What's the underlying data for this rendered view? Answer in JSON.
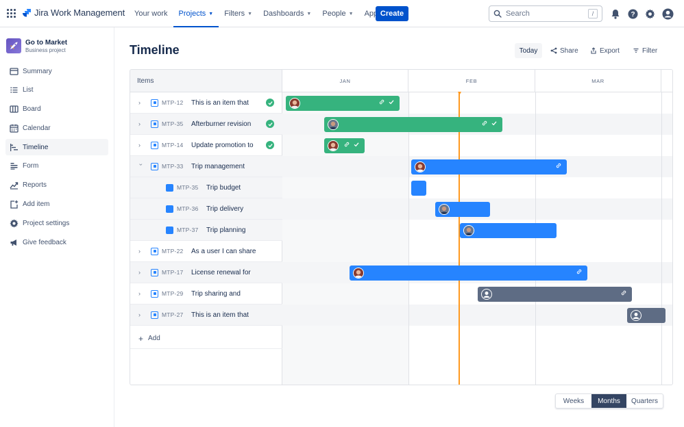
{
  "app": {
    "name": "Jira Work Management"
  },
  "nav": {
    "items": [
      {
        "label": "Your work",
        "dropdown": false
      },
      {
        "label": "Projects",
        "dropdown": true,
        "active": true
      },
      {
        "label": "Filters",
        "dropdown": true
      },
      {
        "label": "Dashboards",
        "dropdown": true
      },
      {
        "label": "People",
        "dropdown": true
      },
      {
        "label": "Apps",
        "dropdown": true
      }
    ],
    "create_label": "Create",
    "search_placeholder": "Search",
    "search_shortcut": "/"
  },
  "project": {
    "name": "Go to Market",
    "type": "Business project"
  },
  "sidebar": {
    "items": [
      {
        "label": "Summary",
        "icon": "summary-icon"
      },
      {
        "label": "List",
        "icon": "list-icon"
      },
      {
        "label": "Board",
        "icon": "board-icon"
      },
      {
        "label": "Calendar",
        "icon": "calendar-icon"
      },
      {
        "label": "Timeline",
        "icon": "timeline-icon",
        "active": true
      },
      {
        "label": "Form",
        "icon": "form-icon"
      },
      {
        "label": "Reports",
        "icon": "reports-icon"
      },
      {
        "label": "Add item",
        "icon": "add-item-icon"
      },
      {
        "label": "Project settings",
        "icon": "gear-icon"
      },
      {
        "label": "Give feedback",
        "icon": "megaphone-icon"
      }
    ]
  },
  "page": {
    "title": "Timeline",
    "today_label": "Today",
    "share_label": "Share",
    "export_label": "Export",
    "filter_label": "Filter"
  },
  "timeline": {
    "items_header": "Items",
    "months": [
      "JAN",
      "FEB",
      "MAR"
    ],
    "add_label": "Add",
    "rows": [
      {
        "key": "MTP-12",
        "summary": "This is an item that",
        "level": 0,
        "expand": "collapsed",
        "done": true,
        "bar_color": "green",
        "avatar": "woman"
      },
      {
        "key": "MTP-35",
        "summary": "Afterburner revision",
        "level": 0,
        "expand": "collapsed",
        "done": true,
        "bar_color": "green",
        "avatar": "man"
      },
      {
        "key": "MTP-14",
        "summary": "Update promotion to",
        "level": 0,
        "expand": "collapsed",
        "done": true,
        "bar_color": "green",
        "avatar": "woman"
      },
      {
        "key": "MTP-33",
        "summary": "Trip management",
        "level": 0,
        "expand": "expanded",
        "done": false,
        "bar_color": "blue",
        "avatar": "woman"
      },
      {
        "key": "MTP-35",
        "summary": "Trip budget",
        "level": 1,
        "done": false,
        "bar_color": "blue",
        "avatar": "none"
      },
      {
        "key": "MTP-36",
        "summary": "Trip delivery",
        "level": 1,
        "done": false,
        "bar_color": "blue",
        "avatar": "man"
      },
      {
        "key": "MTP-37",
        "summary": "Trip planning",
        "level": 1,
        "done": false,
        "bar_color": "blue",
        "avatar": "man"
      },
      {
        "key": "MTP-22",
        "summary": "As a user I can share",
        "level": 0,
        "expand": "collapsed",
        "done": false,
        "bar_color": "none",
        "avatar": "none"
      },
      {
        "key": "MTP-17",
        "summary": "License renewal for",
        "level": 0,
        "expand": "collapsed",
        "done": false,
        "bar_color": "blue",
        "avatar": "woman"
      },
      {
        "key": "MTP-29",
        "summary": "Trip sharing and",
        "level": 0,
        "expand": "collapsed",
        "done": false,
        "bar_color": "grey",
        "avatar": "unassigned"
      },
      {
        "key": "MTP-27",
        "summary": "This is an item that",
        "level": 0,
        "expand": "collapsed",
        "done": false,
        "bar_color": "grey",
        "avatar": "unassigned"
      }
    ]
  },
  "view_switcher": {
    "options": [
      "Weeks",
      "Months",
      "Quarters"
    ],
    "selected": "Months"
  },
  "colors": {
    "accent": "#0052cc",
    "green": "#36b37e",
    "blue": "#2684ff",
    "grey": "#5e6c84",
    "today": "#ff991f"
  }
}
